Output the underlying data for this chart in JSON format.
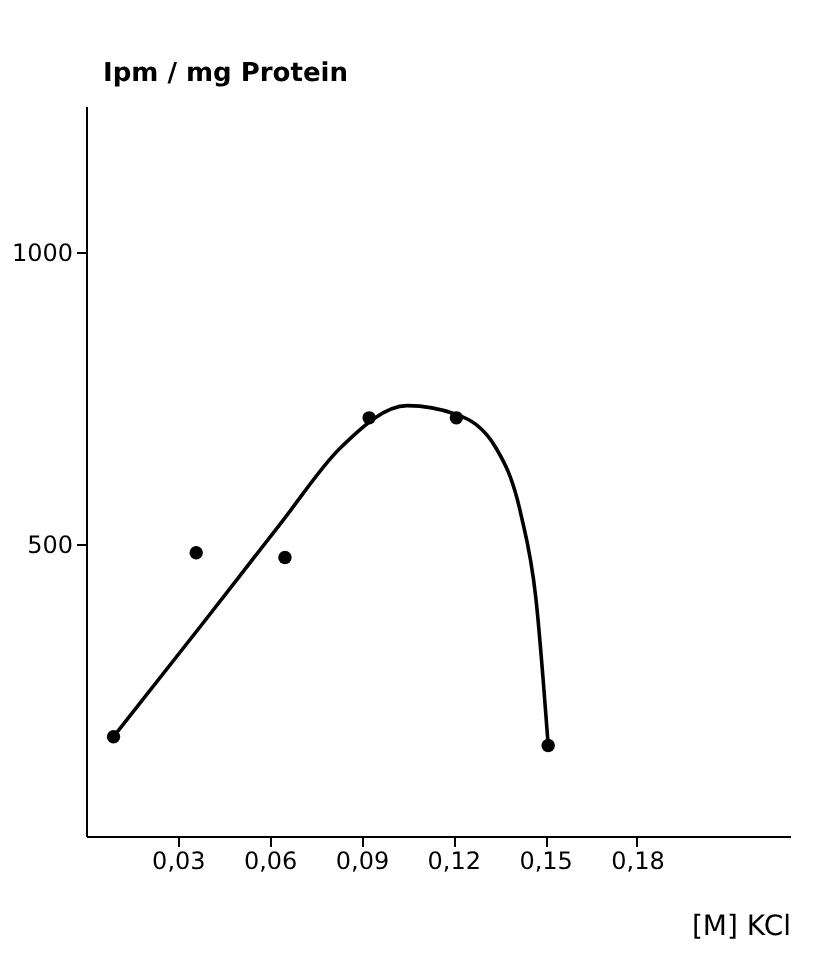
{
  "chart_data": {
    "type": "scatter",
    "xlabel": "[M] KCl",
    "ylabel": "Ipm / mg Protein",
    "xlim": [
      0,
      0.23
    ],
    "ylim": [
      0,
      1250
    ],
    "xticks": [
      {
        "value": 0.03,
        "label": "0,03"
      },
      {
        "value": 0.06,
        "label": "0,06"
      },
      {
        "value": 0.09,
        "label": "0,09"
      },
      {
        "value": 0.12,
        "label": "0,12"
      },
      {
        "value": 0.15,
        "label": "0,15"
      },
      {
        "value": 0.18,
        "label": "0,18"
      }
    ],
    "yticks": [
      500,
      1000
    ],
    "grid": false,
    "series": [
      {
        "type": "scatter",
        "color": "#000000",
        "marker": "circle",
        "x": [
          0.009,
          0.036,
          0.065,
          0.0925,
          0.121,
          0.151
        ],
        "values": [
          170,
          485,
          477,
          716,
          716,
          155
        ]
      },
      {
        "type": "line",
        "color": "#000000",
        "line_style": "solid",
        "x": [
          0.009,
          0.038,
          0.064,
          0.083,
          0.105,
          0.121,
          0.134,
          0.142,
          0.147,
          0.151
        ],
        "values": [
          170,
          363,
          538,
          664,
          737,
          722,
          664,
          553,
          406,
          155
        ]
      }
    ]
  }
}
